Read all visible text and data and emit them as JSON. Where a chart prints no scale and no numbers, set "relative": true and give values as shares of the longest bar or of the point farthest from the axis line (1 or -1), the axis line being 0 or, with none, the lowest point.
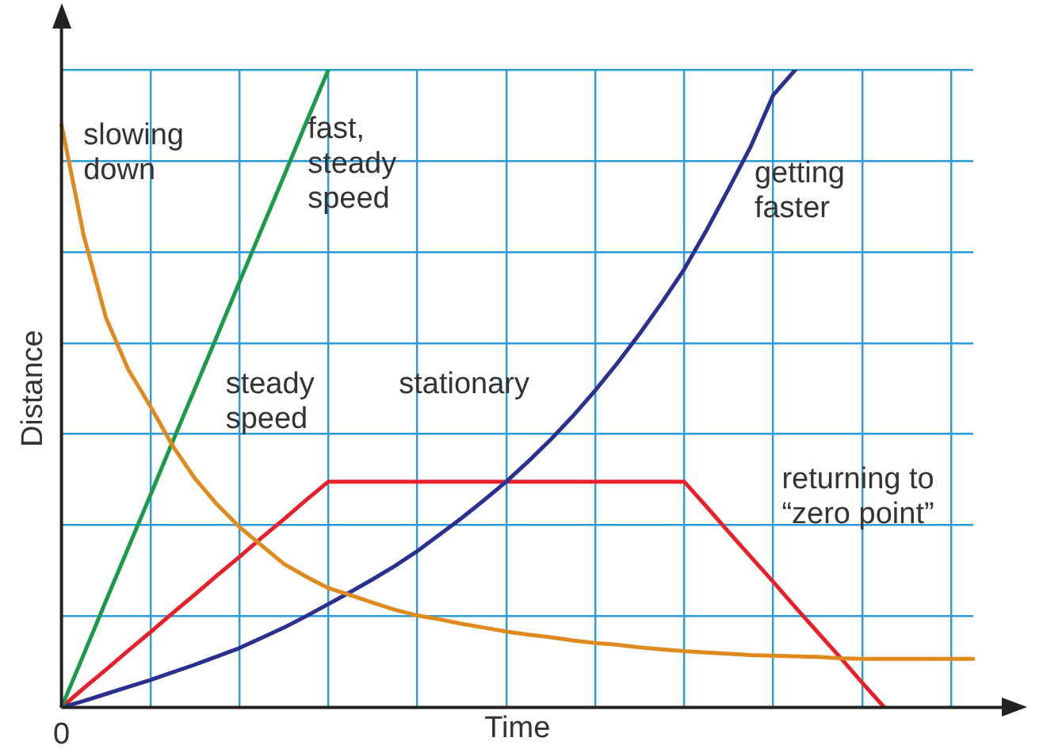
{
  "chart_data": {
    "type": "line",
    "xlabel": "Time",
    "ylabel": "Distance",
    "relative": true,
    "grid": true,
    "legend": false,
    "marker": "none",
    "line_style": "solid",
    "categories": [
      null,
      null,
      null,
      null,
      null,
      null,
      null,
      null,
      null,
      null,
      null,
      null,
      null,
      null,
      null,
      null,
      null,
      null,
      null,
      null,
      null,
      null,
      null,
      null,
      null,
      null,
      null,
      null,
      null,
      null,
      null,
      null,
      null,
      null,
      null,
      null,
      null,
      null,
      null,
      null,
      null,
      null
    ],
    "series": [
      {
        "color": "#e08a1e",
        "values": [
          0.914,
          0.74,
          0.611,
          0.53,
          0.472,
          0.41,
          0.359,
          0.318,
          0.283,
          0.254,
          0.225,
          0.205,
          0.187,
          0.176,
          0.164,
          0.153,
          0.144,
          0.138,
          0.131,
          0.125,
          0.119,
          0.114,
          0.11,
          0.105,
          0.101,
          0.098,
          0.094,
          0.091,
          0.088,
          0.086,
          0.084,
          0.082,
          0.081,
          0.08,
          0.079,
          0.077,
          0.076,
          0.076,
          0.076,
          0.076,
          0.076,
          0.076
        ]
      },
      {
        "color": "#1a9a4a",
        "values": [
          0,
          0.083,
          0.167,
          0.25,
          0.333,
          0.417,
          0.5,
          0.583,
          0.667,
          0.75,
          0.833,
          0.917,
          1,
          null,
          null,
          null,
          null,
          null,
          null,
          null,
          null,
          null,
          null,
          null,
          null,
          null,
          null,
          null,
          null,
          null,
          null,
          null,
          null,
          null,
          null,
          null,
          null,
          null,
          null,
          null,
          null,
          null
        ]
      },
      {
        "color": "#2b2f8f",
        "values": [
          0,
          0.01,
          0.021,
          0.032,
          0.043,
          0.055,
          0.067,
          0.08,
          0.093,
          0.109,
          0.125,
          0.143,
          0.162,
          0.181,
          0.201,
          0.222,
          0.245,
          0.271,
          0.297,
          0.325,
          0.354,
          0.386,
          0.42,
          0.457,
          0.497,
          0.54,
          0.586,
          0.635,
          0.687,
          0.748,
          0.813,
          0.88,
          0.96,
          1,
          null,
          null,
          null,
          null,
          null,
          null,
          null,
          null
        ]
      },
      {
        "color": "#e8202a",
        "values": [
          0,
          0.03,
          0.059,
          0.089,
          0.118,
          0.148,
          0.177,
          0.207,
          0.236,
          0.266,
          0.295,
          0.325,
          0.354,
          0.354,
          0.354,
          0.354,
          0.354,
          0.354,
          0.354,
          0.354,
          0.354,
          0.354,
          0.354,
          0.354,
          0.354,
          0.354,
          0.354,
          0.354,
          0.354,
          0.315,
          0.275,
          0.236,
          0.197,
          0.157,
          0.118,
          0.079,
          0.039,
          0,
          null,
          null,
          null,
          null
        ]
      }
    ],
    "annotations": [
      "0",
      "slowing\ndown",
      "fast,\nsteady\nspeed",
      "getting\nfaster",
      "steady\nspeed",
      "stationary",
      "returning to\n“zero point”"
    ]
  }
}
